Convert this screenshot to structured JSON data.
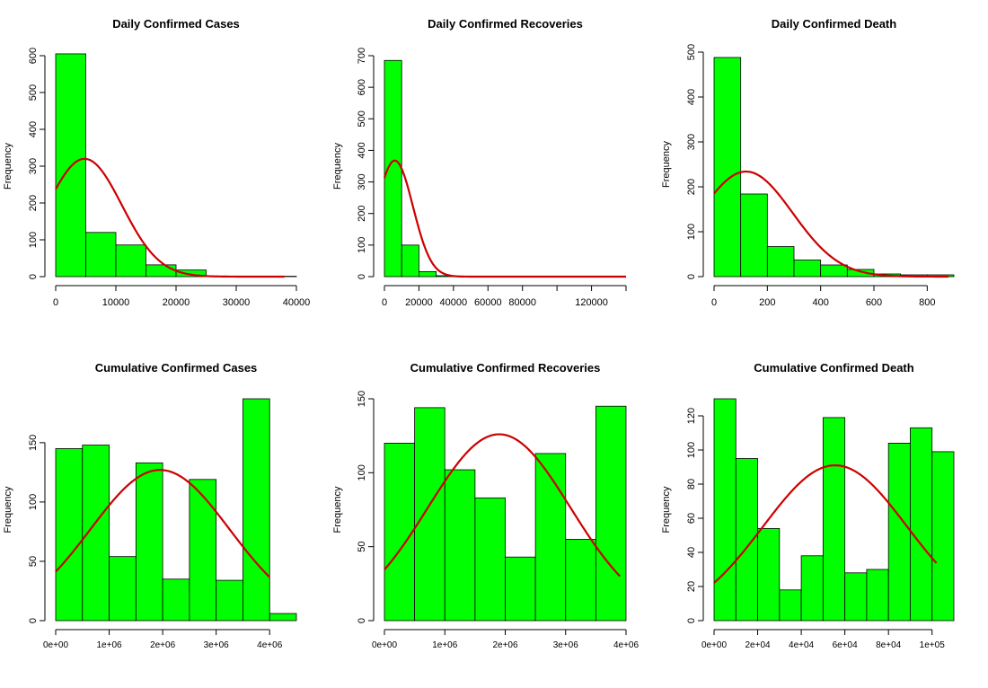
{
  "chart_data": [
    {
      "type": "bar",
      "title": "Daily Confirmed Cases",
      "ylabel": "Frequency",
      "xlim": [
        0,
        40000
      ],
      "ylim": [
        0,
        600
      ],
      "bins": [
        [
          0,
          5000
        ],
        [
          5000,
          10000
        ],
        [
          10000,
          15000
        ],
        [
          15000,
          20000
        ],
        [
          20000,
          25000
        ],
        [
          25000,
          30000
        ],
        [
          30000,
          35000
        ],
        [
          35000,
          40000
        ]
      ],
      "values": [
        605,
        120,
        86,
        32,
        18,
        0,
        0,
        1
      ],
      "xticks": [
        0,
        10000,
        20000,
        30000,
        40000
      ],
      "xtick_labels": [
        "0",
        "10000",
        "20000",
        "30000",
        "40000"
      ],
      "yticks": [
        0,
        100,
        200,
        300,
        400,
        500,
        600
      ],
      "ytick_labels": [
        "0",
        "100",
        "200",
        "300",
        "400",
        "500",
        "600"
      ],
      "curve": {
        "mean": 4800,
        "sd": 6200,
        "peak": 320,
        "x_from": 0,
        "x_to": 38000
      },
      "bar_color": "#00ff00",
      "curve_color": "#cc0000"
    },
    {
      "type": "bar",
      "title": "Daily Confirmed Recoveries",
      "ylabel": "Frequency",
      "xlim": [
        0,
        140000
      ],
      "ylim": [
        0,
        700
      ],
      "bins": [
        [
          0,
          10000
        ],
        [
          10000,
          20000
        ],
        [
          20000,
          30000
        ],
        [
          30000,
          40000
        ]
      ],
      "values": [
        685,
        100,
        16,
        3
      ],
      "xticks": [
        0,
        20000,
        40000,
        60000,
        80000,
        100000,
        120000,
        140000
      ],
      "xtick_labels": [
        "0",
        "20000",
        "40000",
        "60000",
        "80000",
        "",
        "120000",
        ""
      ],
      "yticks": [
        0,
        100,
        200,
        300,
        400,
        500,
        600,
        700
      ],
      "ytick_labels": [
        "0",
        "100",
        "200",
        "300",
        "400",
        "500",
        "600",
        "700"
      ],
      "curve": {
        "mean": 6000,
        "sd": 10500,
        "peak": 368,
        "x_from": 0,
        "x_to": 140000
      },
      "bar_color": "#00ff00",
      "curve_color": "#cc0000"
    },
    {
      "type": "bar",
      "title": "Daily Confirmed Death",
      "ylabel": "Frequency",
      "xlim": [
        0,
        900
      ],
      "ylim": [
        0,
        500
      ],
      "bins": [
        [
          0,
          100
        ],
        [
          100,
          200
        ],
        [
          200,
          300
        ],
        [
          300,
          400
        ],
        [
          400,
          500
        ],
        [
          500,
          600
        ],
        [
          600,
          700
        ],
        [
          700,
          800
        ],
        [
          800,
          900
        ]
      ],
      "values": [
        488,
        184,
        67,
        37,
        26,
        16,
        6,
        4,
        4
      ],
      "xticks": [
        0,
        200,
        400,
        600,
        800
      ],
      "xtick_labels": [
        "0",
        "200",
        "400",
        "600",
        "800"
      ],
      "yticks": [
        0,
        100,
        200,
        300,
        400,
        500
      ],
      "ytick_labels": [
        "0",
        "100",
        "200",
        "300",
        "400",
        "500"
      ],
      "curve": {
        "mean": 120,
        "sd": 175,
        "peak": 234,
        "x_from": 0,
        "x_to": 880
      },
      "bar_color": "#00ff00",
      "curve_color": "#cc0000"
    },
    {
      "type": "bar",
      "title": "Cumulative Confirmed Cases",
      "ylabel": "Frequency",
      "xlim": [
        0,
        4500000
      ],
      "ylim": [
        0,
        187
      ],
      "bins": [
        [
          0,
          500000
        ],
        [
          500000,
          1000000
        ],
        [
          1000000,
          1500000
        ],
        [
          1500000,
          2000000
        ],
        [
          2000000,
          2500000
        ],
        [
          2500000,
          3000000
        ],
        [
          3000000,
          3500000
        ],
        [
          3500000,
          4000000
        ],
        [
          4000000,
          4500000
        ]
      ],
      "values": [
        145,
        148,
        54,
        133,
        35,
        119,
        34,
        187,
        6
      ],
      "xticks": [
        0,
        1000000,
        2000000,
        3000000,
        4000000
      ],
      "xtick_labels": [
        "0e+00",
        "1e+06",
        "2e+06",
        "3e+06",
        "4e+06"
      ],
      "yticks": [
        0,
        50,
        100,
        150
      ],
      "ytick_labels": [
        "0",
        "50",
        "100",
        "150"
      ],
      "curve": {
        "mean": 1950000,
        "sd": 1300000,
        "peak": 127,
        "x_from": 0,
        "x_to": 4000000
      },
      "bar_color": "#00ff00",
      "curve_color": "#cc0000"
    },
    {
      "type": "bar",
      "title": "Cumulative Confirmed Recoveries",
      "ylabel": "Frequency",
      "xlim": [
        0,
        4000000
      ],
      "ylim": [
        0,
        150
      ],
      "bins": [
        [
          0,
          500000
        ],
        [
          500000,
          1000000
        ],
        [
          1000000,
          1500000
        ],
        [
          1500000,
          2000000
        ],
        [
          2000000,
          2500000
        ],
        [
          2500000,
          3000000
        ],
        [
          3000000,
          3500000
        ],
        [
          3500000,
          4000000
        ]
      ],
      "values": [
        120,
        144,
        102,
        83,
        43,
        113,
        55,
        145
      ],
      "xticks": [
        0,
        1000000,
        2000000,
        3000000,
        4000000
      ],
      "xtick_labels": [
        "0e+00",
        "1e+06",
        "2e+06",
        "3e+06",
        "4e+06"
      ],
      "yticks": [
        0,
        50,
        100,
        150
      ],
      "ytick_labels": [
        "0",
        "50",
        "100",
        "150"
      ],
      "curve": {
        "mean": 1900000,
        "sd": 1180000,
        "peak": 126,
        "x_from": 0,
        "x_to": 3900000
      },
      "bar_color": "#00ff00",
      "curve_color": "#cc0000"
    },
    {
      "type": "bar",
      "title": "Cumulative Confirmed Death",
      "ylabel": "Frequency",
      "xlim": [
        0,
        110000
      ],
      "ylim": [
        0,
        130
      ],
      "bins": [
        [
          0,
          10000
        ],
        [
          10000,
          20000
        ],
        [
          20000,
          30000
        ],
        [
          30000,
          40000
        ],
        [
          40000,
          50000
        ],
        [
          50000,
          60000
        ],
        [
          60000,
          70000
        ],
        [
          70000,
          80000
        ],
        [
          80000,
          90000
        ],
        [
          90000,
          100000
        ],
        [
          100000,
          110000
        ]
      ],
      "values": [
        130,
        95,
        54,
        18,
        38,
        119,
        28,
        30,
        104,
        113,
        99
      ],
      "xticks": [
        0,
        20000,
        40000,
        60000,
        80000,
        100000
      ],
      "xtick_labels": [
        "0e+00",
        "2e+04",
        "4e+04",
        "6e+04",
        "8e+04",
        "1e+05"
      ],
      "yticks": [
        0,
        20,
        40,
        60,
        80,
        100,
        120
      ],
      "ytick_labels": [
        "0",
        "20",
        "40",
        "60",
        "80",
        "100",
        "120"
      ],
      "curve": {
        "mean": 55500,
        "sd": 33000,
        "peak": 91,
        "x_from": 0,
        "x_to": 102000
      },
      "bar_color": "#00ff00",
      "curve_color": "#cc0000"
    }
  ]
}
